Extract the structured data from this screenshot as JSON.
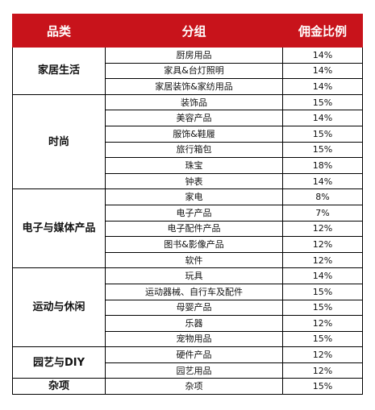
{
  "headers": {
    "category": "品类",
    "group": "分组",
    "rate": "佣金比例"
  },
  "sections": [
    {
      "category": "家居生活",
      "rows": [
        {
          "group": "厨房用品",
          "rate": "14%"
        },
        {
          "group": "家具&台灯照明",
          "rate": "14%"
        },
        {
          "group": "家居装饰&家纺用品",
          "rate": "14%"
        }
      ]
    },
    {
      "category": "时尚",
      "rows": [
        {
          "group": "装饰品",
          "rate": "15%"
        },
        {
          "group": "美容产品",
          "rate": "14%"
        },
        {
          "group": "服饰&鞋履",
          "rate": "15%"
        },
        {
          "group": "旅行箱包",
          "rate": "15%"
        },
        {
          "group": "珠宝",
          "rate": "18%"
        },
        {
          "group": "钟表",
          "rate": "14%"
        }
      ]
    },
    {
      "category": "电子与媒体产品",
      "rows": [
        {
          "group": "家电",
          "rate": "8%"
        },
        {
          "group": "电子产品",
          "rate": "7%"
        },
        {
          "group": "电子配件产品",
          "rate": "12%"
        },
        {
          "group": "图书&影像产品",
          "rate": "12%"
        },
        {
          "group": "软件",
          "rate": "12%"
        }
      ]
    },
    {
      "category": "运动与休闲",
      "rows": [
        {
          "group": "玩具",
          "rate": "14%"
        },
        {
          "group": "运动器械、自行车及配件",
          "rate": "15%"
        },
        {
          "group": "母婴产品",
          "rate": "15%"
        },
        {
          "group": "乐器",
          "rate": "12%"
        },
        {
          "group": "宠物用品",
          "rate": "15%"
        }
      ]
    },
    {
      "category": "园艺与DIY",
      "rows": [
        {
          "group": "硬件产品",
          "rate": "12%"
        },
        {
          "group": "园艺用品",
          "rate": "12%"
        }
      ]
    },
    {
      "category": "杂项",
      "rows": [
        {
          "group": "杂项",
          "rate": "15%"
        }
      ]
    }
  ],
  "colors": {
    "header_bg": "#c8131b",
    "header_text": "#ffffff",
    "border": "#000000"
  }
}
